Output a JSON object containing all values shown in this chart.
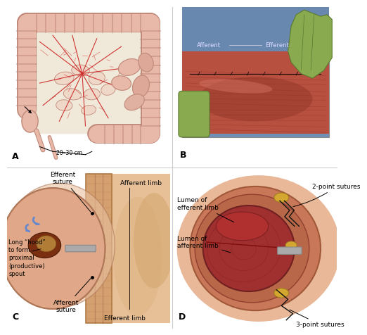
{
  "bg_color": "#ffffff",
  "panel_label_fontsize": 9,
  "label_fontsize": 6.5,
  "divider_color": "#cccccc",
  "panel_A": {
    "colon_color": "#e8b8a8",
    "colon_edge": "#c08878",
    "colon_haustral_color": "#daa898",
    "mesentery_bg": "#f0e8d8",
    "vessel_color": "#cc2222",
    "label_20_30": "20–30 cm",
    "white_bg": "#ffffff"
  },
  "panel_B": {
    "drape_color": "#7090b8",
    "tissue_color": "#b85040",
    "tissue_highlight": "#c86050",
    "tissue_dark": "#883020",
    "glove_color": "#8aaa50",
    "glove_edge": "#5a7a30",
    "photo_border": "#888888",
    "label_color": "#ddddff",
    "afferent": "Afferent",
    "efferent": "Efferent"
  },
  "panel_C": {
    "wall_color": "#d4a070",
    "wall_edge": "#b07840",
    "wall_texture": "#c08850",
    "skin_color": "#e8c098",
    "bowel_color": "#e0a888",
    "bowel_edge": "#b07858",
    "stoma_dark": "#7a3010",
    "stoma_content": "#c09040",
    "rod_color": "#aaaaaa",
    "blue_arrow": "#6688cc",
    "labels": {
      "efferent_suture": "Efferent\nsuture",
      "afferent_limb": "Afferent limb",
      "long_hood": "Long “hood”\nto form\nproximal\n(productive)\nspout",
      "afferent_suture": "Afferent\nsuture",
      "efferent_limb": "Efferent limb"
    }
  },
  "panel_D": {
    "skin_bg": "#e8b898",
    "outer_color": "#c87858",
    "inner_color": "#a03030",
    "inner_edge": "#702020",
    "fat_color": "#d4a830",
    "fat_edge": "#a07820",
    "rod_color": "#aaaaaa",
    "suture_color": "#111111",
    "labels": {
      "two_point": "2-point sutures",
      "lumen_efferent": "Lumen of\nefferent limb",
      "lumen_afferent": "Lumen of\nafferent limb",
      "three_point": "3-point sutures"
    }
  }
}
